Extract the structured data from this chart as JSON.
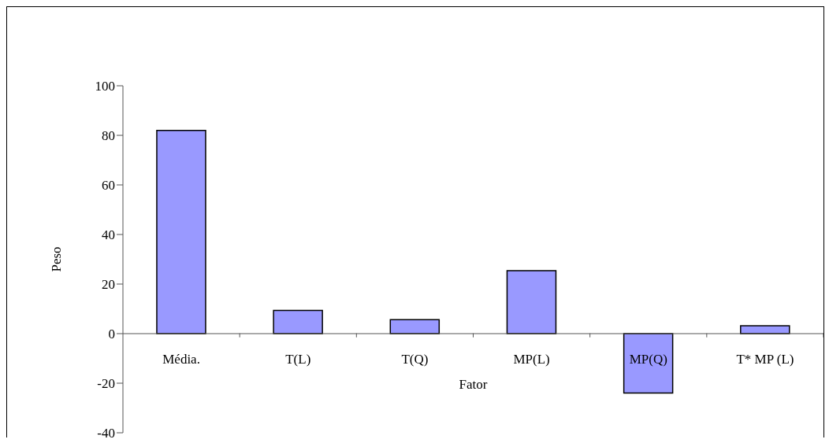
{
  "chart_data": {
    "type": "bar",
    "xlabel": "Fator",
    "ylabel": "Peso",
    "categories": [
      "Média.",
      "T(L)",
      "T(Q)",
      "MP(L)",
      "MP(Q)",
      "T* MP (L)"
    ],
    "values": [
      82,
      9.4,
      5.6,
      25.4,
      -24,
      3.2
    ],
    "color": "#9999ff",
    "ylim": [
      -40,
      100
    ],
    "yticks": [
      -40,
      -20,
      0,
      20,
      40,
      60,
      80,
      100
    ]
  }
}
